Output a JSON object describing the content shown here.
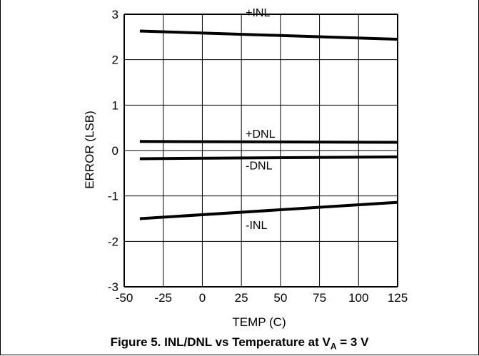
{
  "chart_data": {
    "type": "line",
    "title": "Figure 5. INL/DNL vs Temperature at V",
    "title_sub": "A",
    "title_suffix": " = 3 V",
    "xlabel": "TEMP (C)",
    "ylabel": "ERROR (LSB)",
    "xlim": [
      -50,
      125
    ],
    "ylim": [
      -3,
      3
    ],
    "xticks": [
      -50,
      -25,
      0,
      25,
      50,
      75,
      100,
      125
    ],
    "yticks": [
      -3,
      -2,
      -1,
      0,
      1,
      2,
      3
    ],
    "grid": true,
    "series": [
      {
        "name": "+INL",
        "x": [
          -40,
          125
        ],
        "y": [
          2.63,
          2.45
        ]
      },
      {
        "name": "+DNL",
        "x": [
          -40,
          125
        ],
        "y": [
          0.2,
          0.18
        ]
      },
      {
        "name": "-DNL",
        "x": [
          -40,
          125
        ],
        "y": [
          -0.18,
          -0.14
        ]
      },
      {
        "name": "-INL",
        "x": [
          -40,
          125
        ],
        "y": [
          -1.5,
          -1.14
        ]
      }
    ]
  }
}
